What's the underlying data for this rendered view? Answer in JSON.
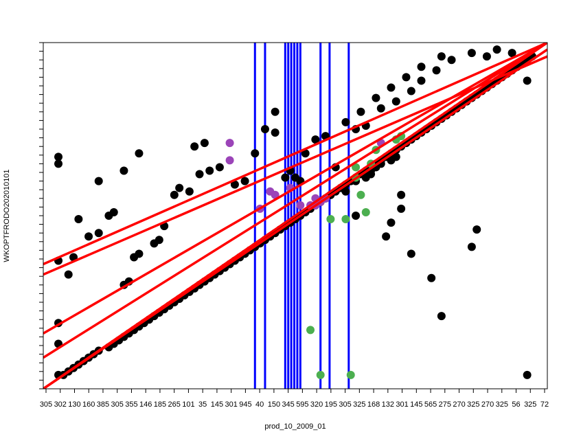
{
  "chart_data": {
    "type": "scatter",
    "xlabel": "prod_10_2009_01",
    "ylabel": "WKOPTFRODO202010101",
    "x_tick_labels": [
      "305",
      "302",
      "130",
      "160",
      "385",
      "305",
      "355",
      "146",
      "185",
      "265",
      "101",
      "35",
      "145",
      "301",
      "945",
      "40",
      "150",
      "345",
      "595",
      "320",
      "195",
      "305",
      "325",
      "168",
      "132",
      "301",
      "145",
      "565",
      "275",
      "270",
      "325",
      "270",
      "325",
      "56",
      "325",
      "72"
    ],
    "xlim": [
      0,
      100
    ],
    "ylim": [
      0,
      100
    ],
    "grid": false,
    "colors": {
      "points": "#000000",
      "highlight_purple": "#9b44b8",
      "highlight_green": "#4caf50",
      "fit_lines": "#ff0000",
      "vertical_lines": "#0000ff",
      "frame": "#000000"
    },
    "series": [
      {
        "name": "",
        "color": "#000000",
        "points": [
          [
            3,
            4
          ],
          [
            4,
            4
          ],
          [
            5,
            5
          ],
          [
            6,
            6
          ],
          [
            7,
            7
          ],
          [
            8,
            8
          ],
          [
            9,
            9
          ],
          [
            10,
            10
          ],
          [
            11,
            11
          ],
          [
            13,
            12
          ],
          [
            14,
            13
          ],
          [
            15,
            14
          ],
          [
            16,
            15
          ],
          [
            17,
            16
          ],
          [
            18,
            17
          ],
          [
            19,
            18
          ],
          [
            20,
            19
          ],
          [
            21,
            20
          ],
          [
            22,
            21
          ],
          [
            23,
            22
          ],
          [
            24,
            23
          ],
          [
            25,
            24
          ],
          [
            26,
            25
          ],
          [
            27,
            26
          ],
          [
            28,
            27
          ],
          [
            29,
            28
          ],
          [
            30,
            29
          ],
          [
            31,
            30
          ],
          [
            32,
            31
          ],
          [
            33,
            32
          ],
          [
            34,
            33
          ],
          [
            35,
            34
          ],
          [
            36,
            35
          ],
          [
            37,
            36
          ],
          [
            38,
            37
          ],
          [
            39,
            38
          ],
          [
            40,
            39
          ],
          [
            41,
            40
          ],
          [
            42,
            41
          ],
          [
            43,
            42
          ],
          [
            44,
            43
          ],
          [
            45,
            44
          ],
          [
            46,
            45
          ],
          [
            47,
            46
          ],
          [
            48,
            47
          ],
          [
            49,
            48
          ],
          [
            50,
            49
          ],
          [
            51,
            50
          ],
          [
            52,
            51
          ],
          [
            53,
            52
          ],
          [
            54,
            53
          ],
          [
            55,
            54
          ],
          [
            56,
            55
          ],
          [
            57,
            56
          ],
          [
            58,
            57
          ],
          [
            59,
            58
          ],
          [
            60,
            59
          ],
          [
            61,
            60
          ],
          [
            62,
            61
          ],
          [
            63,
            62
          ],
          [
            64,
            63
          ],
          [
            65,
            64
          ],
          [
            66,
            65
          ],
          [
            67,
            66
          ],
          [
            68,
            67
          ],
          [
            69,
            68
          ],
          [
            70,
            69
          ],
          [
            71,
            70
          ],
          [
            72,
            71
          ],
          [
            73,
            72
          ],
          [
            74,
            73
          ],
          [
            75,
            74
          ],
          [
            76,
            75
          ],
          [
            77,
            76
          ],
          [
            78,
            77
          ],
          [
            79,
            78
          ],
          [
            80,
            79
          ],
          [
            81,
            80
          ],
          [
            82,
            81
          ],
          [
            83,
            82
          ],
          [
            84,
            83
          ],
          [
            85,
            84
          ],
          [
            86,
            85
          ],
          [
            87,
            86
          ],
          [
            88,
            87
          ],
          [
            89,
            88
          ],
          [
            90,
            89
          ],
          [
            91,
            90
          ],
          [
            92,
            91
          ],
          [
            93,
            92
          ],
          [
            94,
            93
          ],
          [
            95,
            94
          ],
          [
            96,
            95
          ],
          [
            97,
            96
          ],
          [
            3,
            19
          ],
          [
            3,
            13
          ],
          [
            3,
            37
          ],
          [
            5,
            33
          ],
          [
            6,
            38
          ],
          [
            7,
            49
          ],
          [
            9,
            44
          ],
          [
            11,
            45
          ],
          [
            13,
            50
          ],
          [
            14,
            51
          ],
          [
            16,
            30
          ],
          [
            17,
            31
          ],
          [
            18,
            38
          ],
          [
            19,
            39
          ],
          [
            22,
            42
          ],
          [
            23,
            43
          ],
          [
            24,
            47
          ],
          [
            26,
            56
          ],
          [
            27,
            58
          ],
          [
            29,
            57
          ],
          [
            31,
            62
          ],
          [
            33,
            63
          ],
          [
            35,
            64
          ],
          [
            38,
            59
          ],
          [
            40,
            60
          ],
          [
            42,
            68
          ],
          [
            44,
            75
          ],
          [
            46,
            74
          ],
          [
            48,
            61
          ],
          [
            50,
            61
          ],
          [
            51,
            60
          ],
          [
            52,
            68
          ],
          [
            54,
            72
          ],
          [
            56,
            73
          ],
          [
            60,
            77
          ],
          [
            63,
            80
          ],
          [
            66,
            84
          ],
          [
            69,
            87
          ],
          [
            72,
            90
          ],
          [
            75,
            93
          ],
          [
            79,
            96
          ],
          [
            58,
            64
          ],
          [
            62,
            75
          ],
          [
            64,
            76
          ],
          [
            67,
            81
          ],
          [
            70,
            83
          ],
          [
            3,
            65
          ],
          [
            3,
            67
          ],
          [
            11,
            60
          ],
          [
            16,
            63
          ],
          [
            19,
            68
          ],
          [
            30,
            70
          ],
          [
            32,
            71
          ],
          [
            46,
            80
          ],
          [
            49,
            63
          ],
          [
            55,
            54
          ],
          [
            56,
            55
          ],
          [
            57,
            56
          ],
          [
            60,
            57
          ],
          [
            62,
            60
          ],
          [
            64,
            61
          ],
          [
            65,
            62
          ],
          [
            68,
            44
          ],
          [
            69,
            48
          ],
          [
            71,
            56
          ],
          [
            73,
            86
          ],
          [
            75,
            89
          ],
          [
            78,
            92
          ],
          [
            81,
            95
          ],
          [
            85,
            97
          ],
          [
            88,
            96
          ],
          [
            90,
            98
          ],
          [
            93,
            97
          ],
          [
            62,
            50
          ],
          [
            65,
            63
          ],
          [
            66,
            64
          ],
          [
            67,
            65
          ],
          [
            69,
            66
          ],
          [
            70,
            67
          ],
          [
            71,
            52
          ],
          [
            73,
            39
          ],
          [
            77,
            32
          ],
          [
            79,
            21
          ],
          [
            85,
            41
          ],
          [
            86,
            46
          ],
          [
            96,
            89
          ],
          [
            96,
            4
          ]
        ]
      },
      {
        "name": "",
        "color": "#9b44b8",
        "points": [
          [
            49,
            58
          ],
          [
            53,
            53
          ],
          [
            37,
            66
          ],
          [
            45,
            57
          ],
          [
            46,
            56
          ],
          [
            67,
            71
          ],
          [
            37,
            71
          ],
          [
            43,
            52
          ],
          [
            51,
            53
          ],
          [
            54,
            53
          ],
          [
            55,
            54
          ],
          [
            56,
            55
          ],
          [
            54,
            55
          ]
        ]
      },
      {
        "name": "",
        "color": "#4caf50",
        "points": [
          [
            53,
            17
          ],
          [
            55,
            4
          ],
          [
            61,
            4
          ],
          [
            62,
            61
          ],
          [
            63,
            56
          ],
          [
            64,
            51
          ],
          [
            65,
            65
          ],
          [
            66,
            69
          ],
          [
            57,
            49
          ],
          [
            60,
            49
          ],
          [
            70,
            72
          ],
          [
            71,
            73
          ],
          [
            62,
            64
          ]
        ]
      }
    ],
    "fit_lines": [
      {
        "x": [
          0,
          100
        ],
        "y": [
          36,
          100
        ]
      },
      {
        "x": [
          0,
          100
        ],
        "y": [
          33,
          96
        ]
      },
      {
        "x": [
          0,
          100
        ],
        "y": [
          16,
          100
        ]
      },
      {
        "x": [
          0,
          100
        ],
        "y": [
          9,
          100
        ]
      },
      {
        "x": [
          0,
          100
        ],
        "y": [
          0,
          100
        ]
      },
      {
        "x": [
          0,
          100
        ],
        "y": [
          0,
          98
        ]
      }
    ],
    "vertical_lines": [
      42,
      44,
      48,
      48.6,
      49.2,
      49.8,
      50.4,
      51,
      55,
      56.8,
      60.6
    ]
  }
}
